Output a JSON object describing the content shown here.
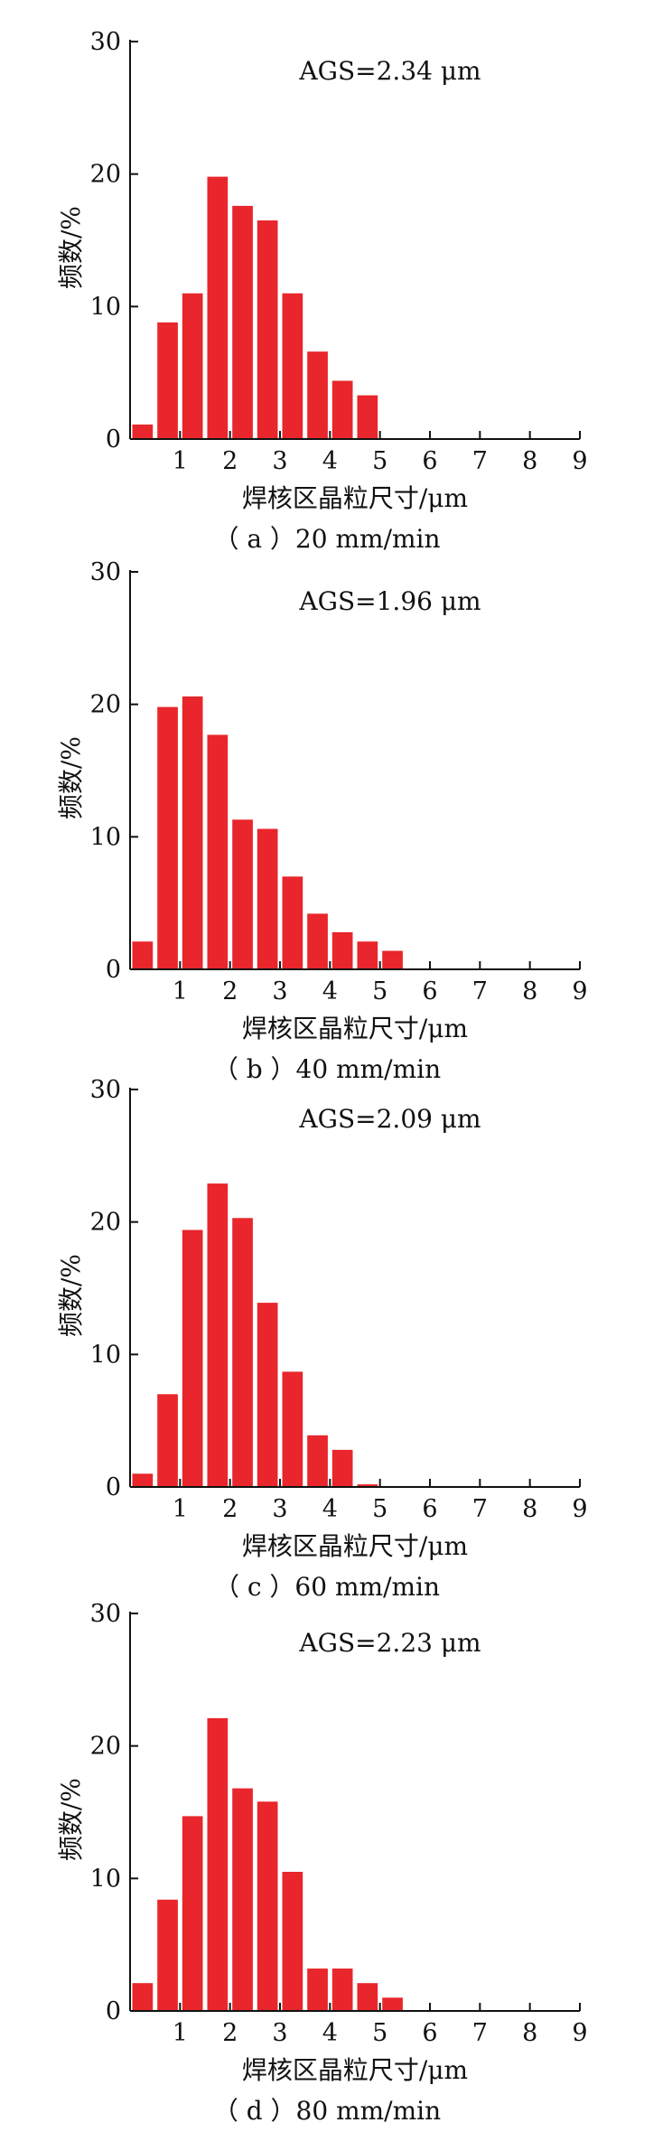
{
  "chart_data": [
    {
      "type": "bar",
      "annotation": "AGS=2.34 μm",
      "xlabel": "焊核区晶粒尺寸/μm",
      "ylabel": "频数/%",
      "caption": "（ a ）20 mm/min",
      "xlim": [
        0,
        9
      ],
      "ylim": [
        0,
        30
      ],
      "xticks": [
        "1",
        "2",
        "3",
        "4",
        "5",
        "6",
        "7",
        "8",
        "9"
      ],
      "yticks": [
        "0",
        "10",
        "20",
        "30"
      ],
      "bin_width": 0.5,
      "x": [
        0.25,
        0.75,
        1.25,
        1.75,
        2.25,
        2.75,
        3.25,
        3.75,
        4.25,
        4.75
      ],
      "values": [
        1.1,
        8.8,
        11.0,
        19.8,
        17.6,
        16.5,
        11.0,
        6.6,
        4.4,
        3.3
      ]
    },
    {
      "type": "bar",
      "annotation": "AGS=1.96 μm",
      "xlabel": "焊核区晶粒尺寸/μm",
      "ylabel": "频数/%",
      "caption": "（ b ）40 mm/min",
      "xlim": [
        0,
        9
      ],
      "ylim": [
        0,
        30
      ],
      "xticks": [
        "1",
        "2",
        "3",
        "4",
        "5",
        "6",
        "7",
        "8",
        "9"
      ],
      "yticks": [
        "0",
        "10",
        "20",
        "30"
      ],
      "bin_width": 0.5,
      "x": [
        0.25,
        0.75,
        1.25,
        1.75,
        2.25,
        2.75,
        3.25,
        3.75,
        4.25,
        4.75,
        5.25
      ],
      "values": [
        2.1,
        19.8,
        20.6,
        17.7,
        11.3,
        10.6,
        7.0,
        4.2,
        2.8,
        2.1,
        1.4
      ]
    },
    {
      "type": "bar",
      "annotation": "AGS=2.09 μm",
      "xlabel": "焊核区晶粒尺寸/μm",
      "ylabel": "频数/%",
      "caption": "（ c ）60 mm/min",
      "xlim": [
        0,
        9
      ],
      "ylim": [
        0,
        30
      ],
      "xticks": [
        "1",
        "2",
        "3",
        "4",
        "5",
        "6",
        "7",
        "8",
        "9"
      ],
      "yticks": [
        "0",
        "10",
        "20",
        "30"
      ],
      "bin_width": 0.5,
      "x": [
        0.25,
        0.75,
        1.25,
        1.75,
        2.25,
        2.75,
        3.25,
        3.75,
        4.25,
        4.75
      ],
      "values": [
        1.0,
        7.0,
        19.4,
        22.9,
        20.3,
        13.9,
        8.7,
        3.9,
        2.8,
        0.2
      ]
    },
    {
      "type": "bar",
      "annotation": "AGS=2.23 μm",
      "xlabel": "焊核区晶粒尺寸/μm",
      "ylabel": "频数/%",
      "caption": "（ d ）80 mm/min",
      "xlim": [
        0,
        9
      ],
      "ylim": [
        0,
        30
      ],
      "xticks": [
        "1",
        "2",
        "3",
        "4",
        "5",
        "6",
        "7",
        "8",
        "9"
      ],
      "yticks": [
        "0",
        "10",
        "20",
        "30"
      ],
      "bin_width": 0.5,
      "x": [
        0.25,
        0.75,
        1.25,
        1.75,
        2.25,
        2.75,
        3.25,
        3.75,
        4.25,
        4.75,
        5.25
      ],
      "values": [
        2.1,
        8.4,
        14.7,
        22.1,
        16.8,
        15.8,
        10.5,
        3.2,
        3.2,
        2.1,
        1.0
      ]
    }
  ],
  "colors": {
    "bar": "#e8262b",
    "axis": "#111111",
    "background": "#ffffff"
  }
}
